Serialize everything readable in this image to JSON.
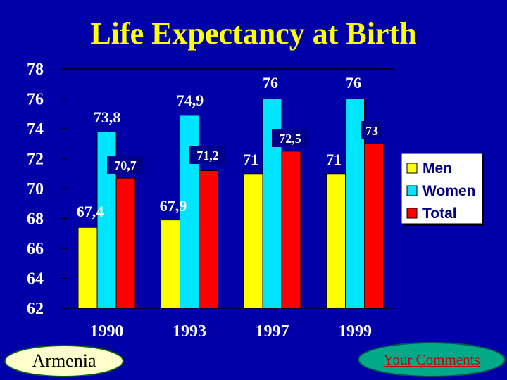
{
  "chart_data": {
    "type": "bar",
    "title": "Life Expectancy at Birth",
    "categories": [
      "1990",
      "1993",
      "1997",
      "1999"
    ],
    "series": [
      {
        "name": "Men",
        "color": "#ffff00",
        "values": [
          67.4,
          67.9,
          71,
          71
        ],
        "labels": [
          "67,4",
          "67,9",
          "71",
          "71"
        ]
      },
      {
        "name": "Women",
        "color": "#00e5ff",
        "values": [
          73.8,
          74.9,
          76,
          76
        ],
        "labels": [
          "73,8",
          "74,9",
          "76",
          "76"
        ]
      },
      {
        "name": "Total",
        "color": "#ff0000",
        "values": [
          70.7,
          71.2,
          72.5,
          73
        ],
        "labels": [
          "70,7",
          "71,2",
          "72,5",
          "73"
        ]
      }
    ],
    "ylim": [
      62,
      78
    ],
    "yticks": [
      "62",
      "64",
      "66",
      "68",
      "70",
      "72",
      "74",
      "76",
      "78"
    ],
    "legend_position": "right",
    "grid": false
  },
  "badges": {
    "country": "Armenia",
    "comments": "Your Comments"
  }
}
